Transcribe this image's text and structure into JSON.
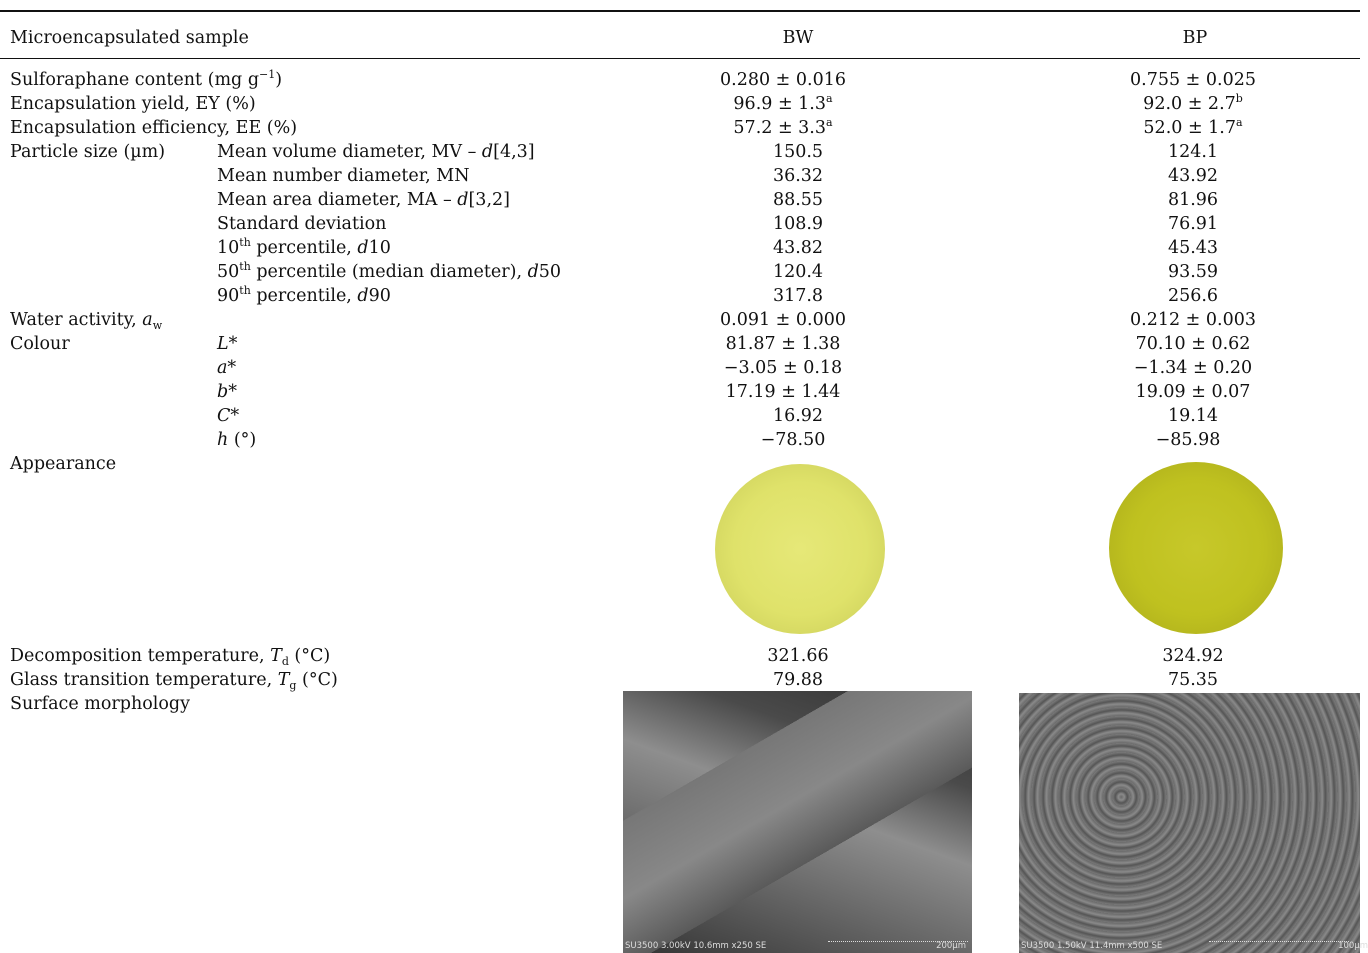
{
  "header": {
    "col0": "Microencapsulated sample",
    "col1": "BW",
    "col2": "BP"
  },
  "rows": [
    {
      "label": "Sulforaphane content (mg g",
      "label_sup": "−1",
      "label_tail": ")",
      "bw": "0.280 ± 0.016",
      "bp": "0.755 ± 0.025"
    },
    {
      "label": "Encapsulation yield, EY (%)",
      "bw": "96.9 ± 1.3",
      "bw_sup": "a",
      "bp": "92.0 ± 2.7",
      "bp_sup": "b"
    },
    {
      "label": "Encapsulation efficiency, EE (%)",
      "bw": "57.2 ± 3.3",
      "bw_sup": "a",
      "bp": "52.0 ± 1.7",
      "bp_sup": "a"
    }
  ],
  "particle_size": {
    "label": "Particle size (µm)",
    "items": [
      {
        "pre": "Mean volume diameter, MV – ",
        "it": "d",
        "post": "[4,3]",
        "bw": "150.5",
        "bp": "124.1"
      },
      {
        "pre": "Mean number diameter, MN",
        "it": "",
        "post": "",
        "bw": "36.32",
        "bp": "43.92"
      },
      {
        "pre": "Mean area diameter, MA – ",
        "it": "d",
        "post": "[3,2]",
        "bw": "88.55",
        "bp": "81.96"
      },
      {
        "pre": "Standard deviation",
        "it": "",
        "post": "",
        "bw": "108.9",
        "bp": "76.91"
      },
      {
        "pre": "10",
        "sup": "th",
        "mid": " percentile, ",
        "it": "d",
        "post": "10",
        "bw": "43.82",
        "bp": "45.43"
      },
      {
        "pre": "50",
        "sup": "th",
        "mid": " percentile (median diameter), ",
        "it": "d",
        "post": "50",
        "bw": "120.4",
        "bp": "93.59"
      },
      {
        "pre": "90",
        "sup": "th",
        "mid": " percentile, ",
        "it": "d",
        "post": "90",
        "bw": "317.8",
        "bp": "256.6"
      }
    ]
  },
  "water": {
    "label": "Water activity, ",
    "sym": "a",
    "sub": "w",
    "bw": "0.091 ± 0.000",
    "bp": "0.212 ± 0.003"
  },
  "colour": {
    "label": "Colour",
    "items": [
      {
        "sym": "L*",
        "post": "",
        "bw": "81.87 ± 1.38",
        "bp": "70.10 ± 0.62"
      },
      {
        "sym": "a*",
        "post": "",
        "bw": "−3.05 ± 0.18",
        "bp": "−1.34 ± 0.20"
      },
      {
        "sym": "b*",
        "post": "",
        "bw": "17.19 ± 1.44",
        "bp": "19.09 ± 0.07"
      },
      {
        "sym": "C*",
        "post": "",
        "bw": "16.92",
        "bp": "19.14"
      },
      {
        "sym": "h",
        "post": " (°)",
        "bw": "−78.50",
        "bp": "−85.98"
      }
    ]
  },
  "appearance": {
    "label": "Appearance"
  },
  "decomp": {
    "label": "Decomposition temperature, ",
    "sym": "T",
    "sub": "d",
    "tail": " (°C)",
    "bw": "321.66",
    "bp": "324.92"
  },
  "glass": {
    "label": "Glass transition temperature, ",
    "sym": "T",
    "sub": "g",
    "tail": " (°C)",
    "bw": "79.88",
    "bp": "75.35"
  },
  "morphology": {
    "label": "Surface morphology",
    "bw_caption": "SU3500 3.00kV 10.6mm x250 SE",
    "bw_scale": "200µm",
    "bp_caption": "SU3500 1.50kV 11.4mm x500 SE",
    "bp_scale": "100µm"
  }
}
